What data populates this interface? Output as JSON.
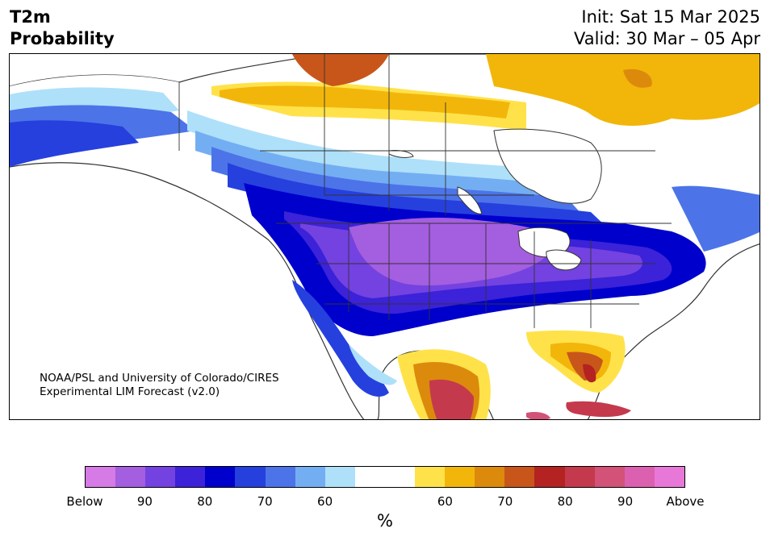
{
  "header": {
    "title_line1": "T2m",
    "title_line2": "Probability",
    "init": "Init: Sat 15 Mar 2025",
    "valid": "Valid: 30 Mar – 05 Apr"
  },
  "map": {
    "credit_line1": "NOAA/PSL and University of Colorado/CIRES",
    "credit_line2": "Experimental LIM Forecast (v2.0)"
  },
  "colorbar": {
    "colors": [
      "#d67ae6",
      "#a45ee0",
      "#7442e0",
      "#3c22d8",
      "#0000cc",
      "#2640de",
      "#4c74e8",
      "#74aef2",
      "#aee0fa",
      "#ffffff",
      "#ffffff",
      "#ffe24a",
      "#f2b60a",
      "#dc8a0c",
      "#c8561a",
      "#b42222",
      "#c43a4c",
      "#d25278",
      "#dc60b0",
      "#e878d8"
    ],
    "ticks": [
      "Below",
      "90",
      "80",
      "70",
      "60",
      "60",
      "70",
      "80",
      "90",
      "Above"
    ],
    "unit": "%"
  }
}
